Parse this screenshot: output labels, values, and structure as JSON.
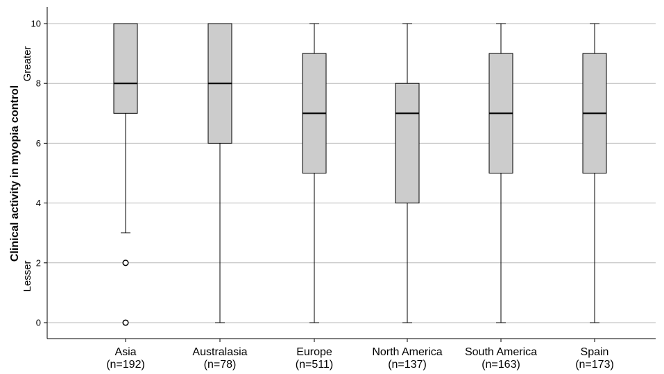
{
  "chart_data": {
    "type": "box",
    "ylabel": "Clinical activity in myopia control",
    "ylabel_annotations": {
      "high": "Greater",
      "low": "Lesser"
    },
    "ylim": [
      0,
      10.5
    ],
    "yticks": [
      0,
      2,
      4,
      6,
      8,
      10
    ],
    "grid": "horizontal",
    "colors": {
      "box_fill": "#cccccc",
      "line": "#000000",
      "grid": "#b8b8b8"
    },
    "categories": [
      {
        "name": "Asia",
        "n_label": "(n=192)",
        "min": 3,
        "q1": 7,
        "median": 8,
        "q3": 10,
        "max": 10,
        "outliers": [
          2,
          0
        ]
      },
      {
        "name": "Australasia",
        "n_label": "(n=78)",
        "min": 0,
        "q1": 6,
        "median": 8,
        "q3": 10,
        "max": 10,
        "outliers": []
      },
      {
        "name": "Europe",
        "n_label": "(n=511)",
        "min": 0,
        "q1": 5,
        "median": 7,
        "q3": 9,
        "max": 10,
        "outliers": []
      },
      {
        "name": "North America",
        "n_label": "(n=137)",
        "min": 0,
        "q1": 4,
        "median": 7,
        "q3": 8,
        "max": 10,
        "outliers": []
      },
      {
        "name": "South America",
        "n_label": "(n=163)",
        "min": 0,
        "q1": 5,
        "median": 7,
        "q3": 9,
        "max": 10,
        "outliers": []
      },
      {
        "name": "Spain",
        "n_label": "(n=173)",
        "min": 0,
        "q1": 5,
        "median": 7,
        "q3": 9,
        "max": 10,
        "outliers": []
      }
    ]
  }
}
